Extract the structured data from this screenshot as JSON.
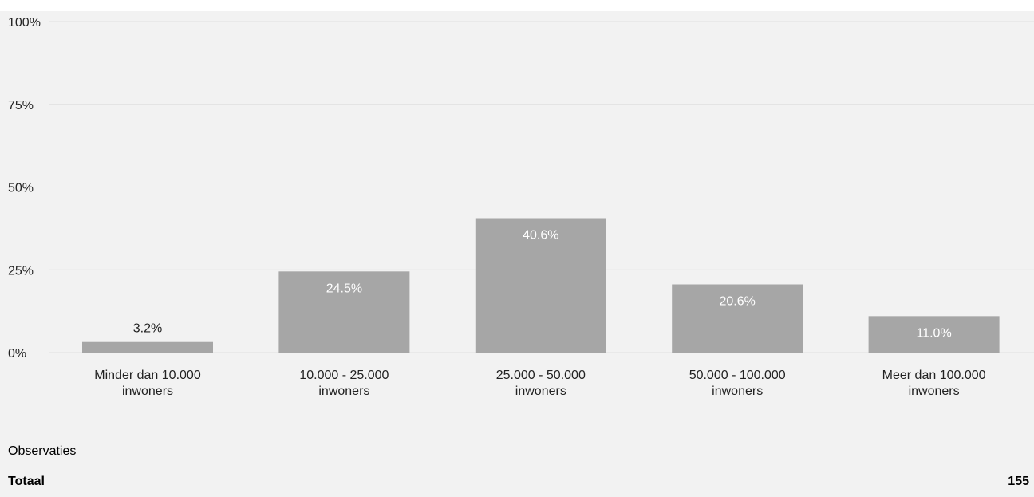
{
  "chart_data": {
    "type": "bar",
    "categories": [
      [
        "Minder dan 10.000",
        "inwoners"
      ],
      [
        "10.000 - 25.000",
        "inwoners"
      ],
      [
        "25.000 - 50.000",
        "inwoners"
      ],
      [
        "50.000 - 100.000",
        "inwoners"
      ],
      [
        "Meer dan 100.000",
        "inwoners"
      ]
    ],
    "values": [
      3.2,
      24.5,
      40.6,
      20.6,
      11.0
    ],
    "data_labels": [
      "3.2%",
      "24.5%",
      "40.6%",
      "20.6%",
      "11.0%"
    ],
    "yticks": [
      0,
      25,
      50,
      75,
      100
    ],
    "ytick_labels": [
      "0%",
      "25%",
      "50%",
      "75%",
      "100%"
    ],
    "ylim": [
      0,
      100
    ],
    "grid": true,
    "colors": {
      "bar": "#a6a6a6",
      "label_inside": "#ffffff",
      "label_outside": "#222222",
      "grid": "#e0e0e0",
      "background": "#f2f2f2"
    }
  },
  "observations": {
    "title": "Observaties",
    "total_label": "Totaal",
    "total_value": "155"
  }
}
